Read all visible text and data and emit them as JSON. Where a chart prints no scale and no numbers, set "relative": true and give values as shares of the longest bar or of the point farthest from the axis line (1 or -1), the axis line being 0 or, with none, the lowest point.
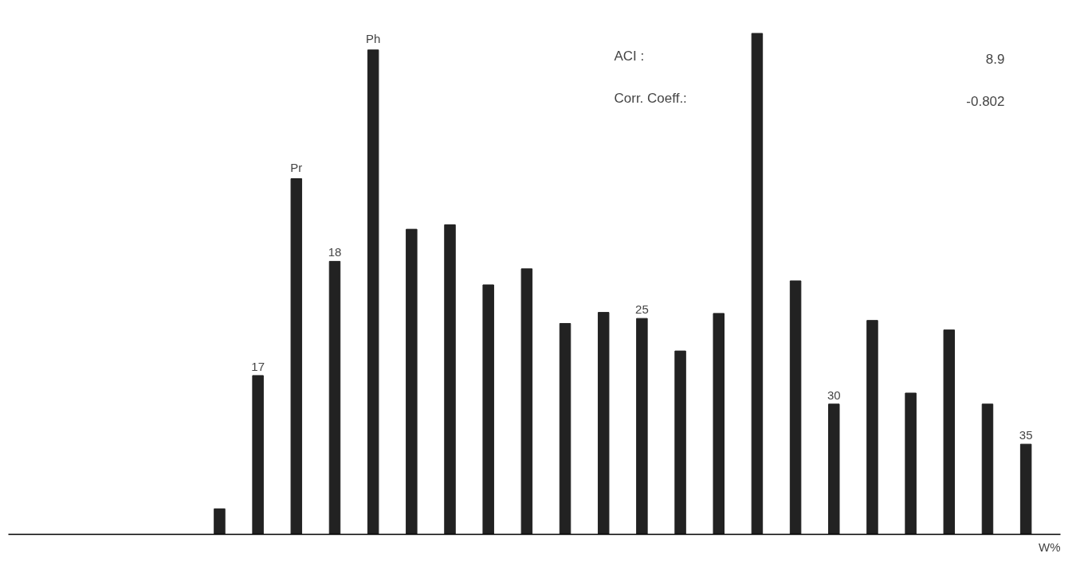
{
  "chart_data": {
    "type": "bar",
    "relative": true,
    "xlabel": "W%",
    "color": "#222222",
    "categories": [
      null,
      "17",
      "Pr",
      "18",
      "Ph",
      null,
      null,
      null,
      null,
      null,
      null,
      "25",
      null,
      null,
      null,
      null,
      "30",
      null,
      null,
      null,
      null,
      "35"
    ],
    "values": [
      0.051,
      0.317,
      0.71,
      0.545,
      0.967,
      0.609,
      0.618,
      0.498,
      0.53,
      0.421,
      0.443,
      0.431,
      0.366,
      0.441,
      1,
      0.506,
      0.26,
      0.427,
      0.282,
      0.408,
      0.26,
      0.18
    ],
    "annotations": [
      "ACI :",
      "8.9",
      "Corr. Coeff.:",
      "-0.802"
    ],
    "grid": false
  }
}
